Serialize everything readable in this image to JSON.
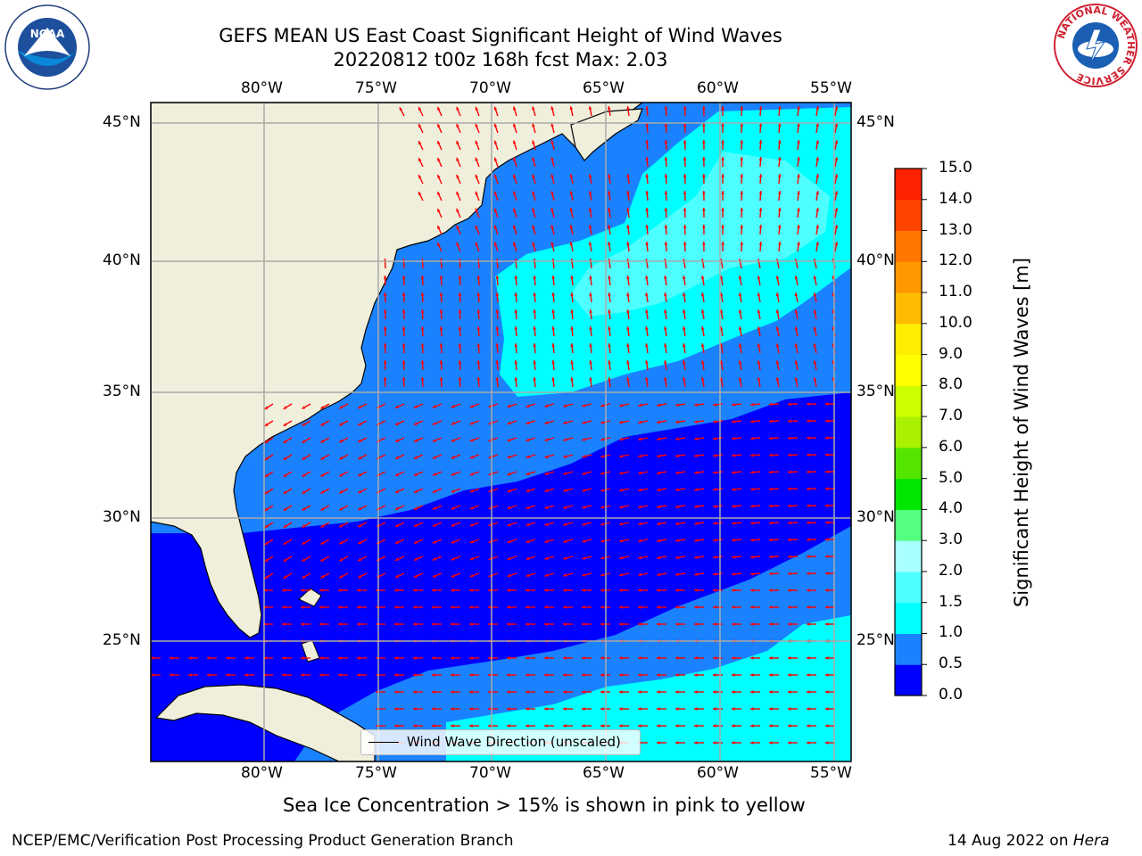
{
  "title": {
    "line1": "GEFS MEAN US East Coast Significant Height of Wind Waves",
    "line2": "20220812 t00z 168h fcst   Max: 2.03"
  },
  "logos": {
    "left": "NOAA",
    "right": "NATIONAL WEATHER SERVICE"
  },
  "map": {
    "lon_labels": [
      "80°W",
      "75°W",
      "70°W",
      "65°W",
      "60°W",
      "55°W"
    ],
    "lat_labels": [
      "45°N",
      "40°N",
      "35°N",
      "30°N",
      "25°N"
    ],
    "legend_label": "Wind Wave Direction (unscaled)"
  },
  "colorbar": {
    "label": "Significant Height of Wind Waves [m]",
    "ticks": [
      "0.0",
      "0.5",
      "1.0",
      "1.5",
      "2.0",
      "3.0",
      "4.0",
      "5.0",
      "6.0",
      "7.0",
      "8.0",
      "9.0",
      "10.0",
      "11.0",
      "12.0",
      "13.0",
      "14.0",
      "15.0"
    ],
    "colors": [
      "#0000ff",
      "#1a82ff",
      "#00ffff",
      "#4dffff",
      "#a8ffff",
      "#55ff7f",
      "#00e600",
      "#55e600",
      "#aaf000",
      "#ccff00",
      "#ffff00",
      "#ffee00",
      "#ffbb00",
      "#ff9900",
      "#ff7700",
      "#ff4400",
      "#ff2200"
    ],
    "ocean_colors": {
      "low": "#0000ff",
      "mid": "#1a82ff",
      "high": "#00ffff",
      "top": "#4dffff"
    }
  },
  "bottom_note": "Sea Ice Concentration > 15% is shown in pink to yellow",
  "footer": {
    "left": "NCEP/EMC/Verification Post Processing Product Generation Branch",
    "right_prefix": "14 Aug 2022 on ",
    "right_italic": "Hera"
  }
}
